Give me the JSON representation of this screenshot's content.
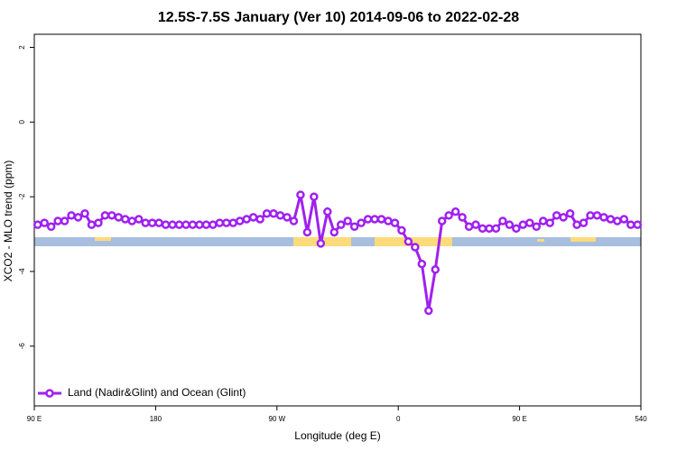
{
  "chart_data": {
    "type": "line",
    "title": "12.5S-7.5S January (Ver 10)   2014-09-06 to 2022-02-28",
    "x_label": "Longitude (deg E)",
    "y_label": "XCO2 - MLO trend (ppm)",
    "xlim": [
      90,
      540
    ],
    "ylim": [
      -7.6,
      2.35
    ],
    "xticks": [
      {
        "value": 90,
        "label": "90 E"
      },
      180,
      {
        "value": 270,
        "label": "90 W"
      },
      {
        "value": 360,
        "label": "0"
      },
      {
        "value": 450,
        "label": "90 E"
      },
      540
    ],
    "yticks": [
      2,
      0,
      -2,
      -4,
      -6
    ],
    "legend": "bottom-left",
    "x": [
      92.5,
      97.5,
      102.5,
      107.5,
      112.5,
      117.5,
      122.5,
      127.5,
      132.5,
      137.5,
      142.5,
      147.5,
      152.5,
      157.5,
      162.5,
      167.5,
      172.5,
      177.5,
      182.5,
      187.5,
      192.5,
      197.5,
      202.5,
      207.5,
      212.5,
      217.5,
      222.5,
      227.5,
      232.5,
      237.5,
      242.5,
      247.5,
      252.5,
      257.5,
      262.5,
      267.5,
      272.5,
      277.5,
      282.5,
      287.5,
      292.5,
      297.5,
      302.5,
      307.5,
      312.5,
      317.5,
      322.5,
      327.5,
      332.5,
      337.5,
      342.5,
      347.5,
      352.5,
      357.5,
      362.5,
      367.5,
      372.5,
      377.5,
      382.5,
      387.5,
      392.5,
      397.5,
      402.5,
      407.5,
      412.5,
      417.5,
      422.5,
      427.5,
      432.5,
      437.5,
      442.5,
      447.5,
      452.5,
      457.5,
      462.5,
      467.5,
      472.5,
      477.5,
      482.5,
      487.5,
      492.5,
      497.5,
      502.5,
      507.5,
      512.5,
      517.5,
      522.5,
      527.5,
      532.5,
      537.5
    ],
    "series": [
      {
        "name": "Land (Nadir&Glint) and Ocean (Glint)",
        "color": "#a020f0",
        "values": [
          -2.75,
          -2.7,
          -2.8,
          -2.65,
          -2.65,
          -2.5,
          -2.55,
          -2.45,
          -2.75,
          -2.7,
          -2.5,
          -2.5,
          -2.55,
          -2.6,
          -2.65,
          -2.6,
          -2.7,
          -2.7,
          -2.7,
          -2.75,
          -2.75,
          -2.75,
          -2.75,
          -2.75,
          -2.75,
          -2.75,
          -2.75,
          -2.7,
          -2.7,
          -2.7,
          -2.65,
          -2.6,
          -2.55,
          -2.6,
          -2.45,
          -2.45,
          -2.5,
          -2.55,
          -2.65,
          -1.95,
          -2.95,
          -2.0,
          -3.25,
          -2.4,
          -2.95,
          -2.75,
          -2.65,
          -2.8,
          -2.7,
          -2.6,
          -2.6,
          -2.6,
          -2.65,
          -2.7,
          -2.9,
          -3.2,
          -3.35,
          -3.8,
          -5.05,
          -3.95,
          -2.65,
          -2.5,
          -2.4,
          -2.55,
          -2.8,
          -2.75,
          -2.85,
          -2.85,
          -2.85,
          -2.65,
          -2.75,
          -2.85,
          -2.75,
          -2.7,
          -2.8,
          -2.65,
          -2.7,
          -2.5,
          -2.55,
          -2.45,
          -2.75,
          -2.7,
          -2.5,
          -2.5,
          -2.55,
          -2.6,
          -2.65,
          -2.6,
          -2.75,
          -2.75
        ]
      }
    ]
  }
}
